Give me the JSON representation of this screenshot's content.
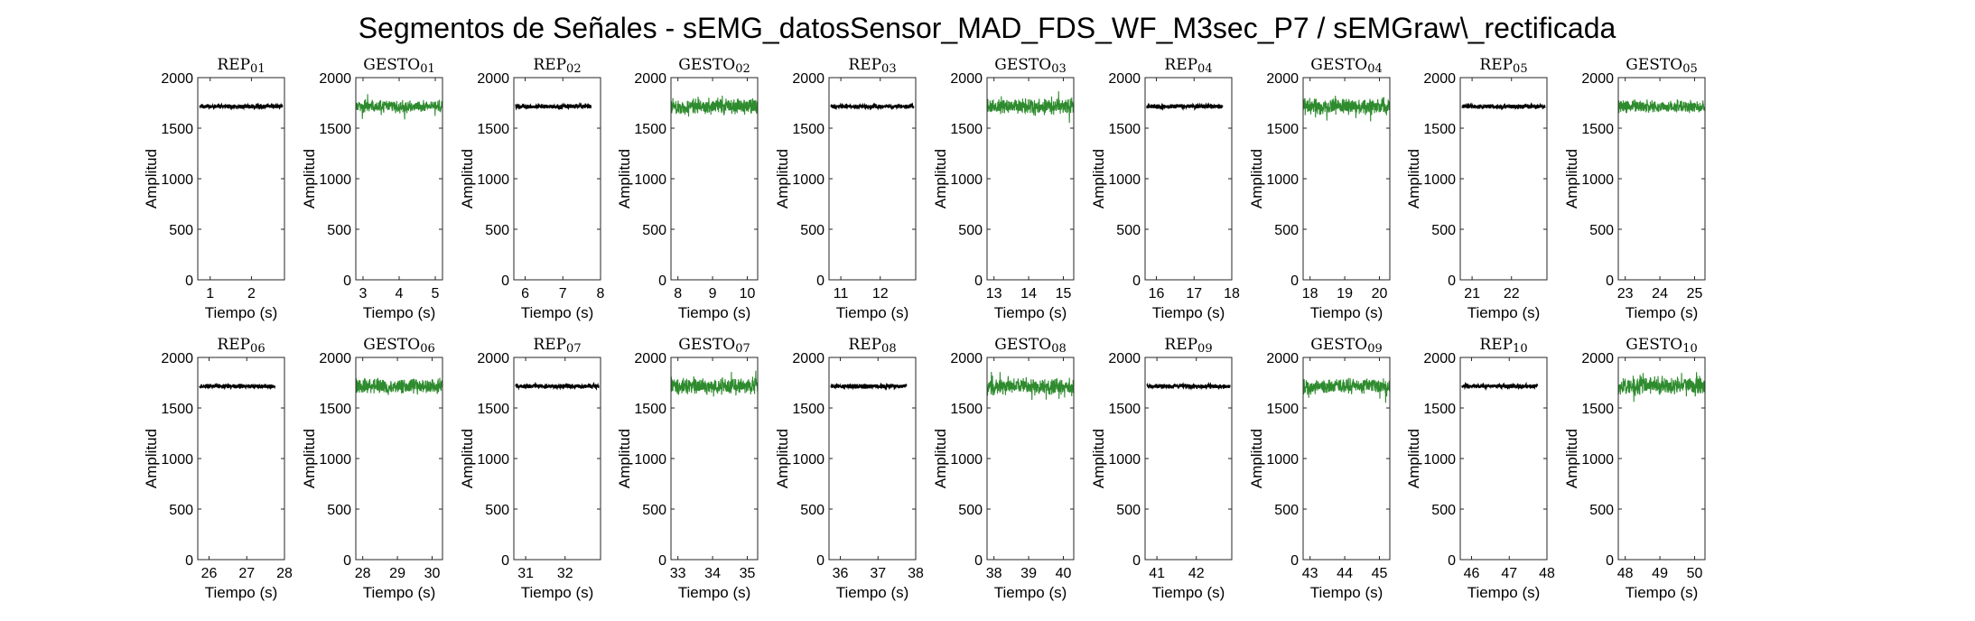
{
  "figure": {
    "title": "Segmentos de Señales - sEMG_datosSensor_MAD_FDS_WF_M3sec_P7 / sEMGraw\\_rectificada"
  },
  "colors": {
    "rep": "#000000",
    "gesto": "#2e8b2e"
  },
  "chart_data": [
    {
      "type": "line",
      "title": "REP_01",
      "xlabel": "Tiempo (s)",
      "ylabel": "Amplitud",
      "xlim": [
        0.7,
        2.8
      ],
      "ylim": [
        0,
        2000
      ],
      "xticks": [
        1,
        2
      ],
      "yticks": [
        0,
        500,
        1000,
        1500,
        2000
      ],
      "series": [
        {
          "kind": "rep",
          "x_range": [
            0.75,
            2.75
          ],
          "baseline": 1715,
          "noise": 25
        }
      ]
    },
    {
      "type": "line",
      "title": "GESTO_01",
      "xlabel": "Tiempo (s)",
      "ylabel": "Amplitud",
      "xlim": [
        2.8,
        5.2
      ],
      "ylim": [
        0,
        2000
      ],
      "xticks": [
        3,
        4,
        5
      ],
      "yticks": [
        0,
        500,
        1000,
        1500,
        2000
      ],
      "series": [
        {
          "kind": "gesto",
          "x_range": [
            2.8,
            5.2
          ],
          "baseline": 1715,
          "noise": 70
        }
      ]
    },
    {
      "type": "line",
      "title": "REP_02",
      "xlabel": "Tiempo (s)",
      "ylabel": "Amplitud",
      "xlim": [
        5.7,
        8.0
      ],
      "ylim": [
        0,
        2000
      ],
      "xticks": [
        6,
        7,
        8
      ],
      "yticks": [
        0,
        500,
        1000,
        1500,
        2000
      ],
      "series": [
        {
          "kind": "rep",
          "x_range": [
            5.75,
            7.75
          ],
          "baseline": 1715,
          "noise": 25
        }
      ]
    },
    {
      "type": "line",
      "title": "GESTO_02",
      "xlabel": "Tiempo (s)",
      "ylabel": "Amplitud",
      "xlim": [
        7.8,
        10.3
      ],
      "ylim": [
        0,
        2000
      ],
      "xticks": [
        8,
        9,
        10
      ],
      "yticks": [
        0,
        500,
        1000,
        1500,
        2000
      ],
      "series": [
        {
          "kind": "gesto",
          "x_range": [
            7.8,
            10.3
          ],
          "baseline": 1715,
          "noise": 90
        }
      ]
    },
    {
      "type": "line",
      "title": "REP_03",
      "xlabel": "Tiempo (s)",
      "ylabel": "Amplitud",
      "xlim": [
        10.7,
        12.9
      ],
      "ylim": [
        0,
        2000
      ],
      "xticks": [
        11,
        12
      ],
      "yticks": [
        0,
        500,
        1000,
        1500,
        2000
      ],
      "series": [
        {
          "kind": "rep",
          "x_range": [
            10.75,
            12.85
          ],
          "baseline": 1715,
          "noise": 25
        }
      ]
    },
    {
      "type": "line",
      "title": "GESTO_03",
      "xlabel": "Tiempo (s)",
      "ylabel": "Amplitud",
      "xlim": [
        12.8,
        15.3
      ],
      "ylim": [
        0,
        2000
      ],
      "xticks": [
        13,
        14,
        15
      ],
      "yticks": [
        0,
        500,
        1000,
        1500,
        2000
      ],
      "series": [
        {
          "kind": "gesto",
          "x_range": [
            12.8,
            15.3
          ],
          "baseline": 1715,
          "noise": 90
        }
      ]
    },
    {
      "type": "line",
      "title": "REP_04",
      "xlabel": "Tiempo (s)",
      "ylabel": "Amplitud",
      "xlim": [
        15.7,
        18.0
      ],
      "ylim": [
        0,
        2000
      ],
      "xticks": [
        16,
        17,
        18
      ],
      "yticks": [
        0,
        500,
        1000,
        1500,
        2000
      ],
      "series": [
        {
          "kind": "rep",
          "x_range": [
            15.75,
            17.75
          ],
          "baseline": 1715,
          "noise": 25
        }
      ]
    },
    {
      "type": "line",
      "title": "GESTO_04",
      "xlabel": "Tiempo (s)",
      "ylabel": "Amplitud",
      "xlim": [
        17.8,
        20.3
      ],
      "ylim": [
        0,
        2000
      ],
      "xticks": [
        18,
        19,
        20
      ],
      "yticks": [
        0,
        500,
        1000,
        1500,
        2000
      ],
      "series": [
        {
          "kind": "gesto",
          "x_range": [
            17.8,
            20.3
          ],
          "baseline": 1715,
          "noise": 95
        }
      ]
    },
    {
      "type": "line",
      "title": "REP_05",
      "xlabel": "Tiempo (s)",
      "ylabel": "Amplitud",
      "xlim": [
        20.7,
        22.9
      ],
      "ylim": [
        0,
        2000
      ],
      "xticks": [
        21,
        22
      ],
      "yticks": [
        0,
        500,
        1000,
        1500,
        2000
      ],
      "series": [
        {
          "kind": "rep",
          "x_range": [
            20.75,
            22.85
          ],
          "baseline": 1715,
          "noise": 25
        }
      ]
    },
    {
      "type": "line",
      "title": "GESTO_05",
      "xlabel": "Tiempo (s)",
      "ylabel": "Amplitud",
      "xlim": [
        22.8,
        25.3
      ],
      "ylim": [
        0,
        2000
      ],
      "xticks": [
        23,
        24,
        25
      ],
      "yticks": [
        0,
        500,
        1000,
        1500,
        2000
      ],
      "series": [
        {
          "kind": "gesto",
          "x_range": [
            22.8,
            25.3
          ],
          "baseline": 1715,
          "noise": 75
        }
      ]
    },
    {
      "type": "line",
      "title": "REP_06",
      "xlabel": "Tiempo (s)",
      "ylabel": "Amplitud",
      "xlim": [
        25.7,
        28.0
      ],
      "ylim": [
        0,
        2000
      ],
      "xticks": [
        26,
        27,
        28
      ],
      "yticks": [
        0,
        500,
        1000,
        1500,
        2000
      ],
      "series": [
        {
          "kind": "rep",
          "x_range": [
            25.75,
            27.75
          ],
          "baseline": 1715,
          "noise": 25
        }
      ]
    },
    {
      "type": "line",
      "title": "GESTO_06",
      "xlabel": "Tiempo (s)",
      "ylabel": "Amplitud",
      "xlim": [
        27.8,
        30.3
      ],
      "ylim": [
        0,
        2000
      ],
      "xticks": [
        28,
        29,
        30
      ],
      "yticks": [
        0,
        500,
        1000,
        1500,
        2000
      ],
      "series": [
        {
          "kind": "gesto",
          "x_range": [
            27.8,
            30.3
          ],
          "baseline": 1715,
          "noise": 90
        }
      ]
    },
    {
      "type": "line",
      "title": "REP_07",
      "xlabel": "Tiempo (s)",
      "ylabel": "Amplitud",
      "xlim": [
        30.7,
        32.9
      ],
      "ylim": [
        0,
        2000
      ],
      "xticks": [
        31,
        32
      ],
      "yticks": [
        0,
        500,
        1000,
        1500,
        2000
      ],
      "series": [
        {
          "kind": "rep",
          "x_range": [
            30.75,
            32.85
          ],
          "baseline": 1715,
          "noise": 25
        }
      ]
    },
    {
      "type": "line",
      "title": "GESTO_07",
      "xlabel": "Tiempo (s)",
      "ylabel": "Amplitud",
      "xlim": [
        32.8,
        35.3
      ],
      "ylim": [
        0,
        2000
      ],
      "xticks": [
        33,
        34,
        35
      ],
      "yticks": [
        0,
        500,
        1000,
        1500,
        2000
      ],
      "series": [
        {
          "kind": "gesto",
          "x_range": [
            32.8,
            35.3
          ],
          "baseline": 1715,
          "noise": 100
        }
      ]
    },
    {
      "type": "line",
      "title": "REP_08",
      "xlabel": "Tiempo (s)",
      "ylabel": "Amplitud",
      "xlim": [
        35.7,
        38.0
      ],
      "ylim": [
        0,
        2000
      ],
      "xticks": [
        36,
        37,
        38
      ],
      "yticks": [
        0,
        500,
        1000,
        1500,
        2000
      ],
      "series": [
        {
          "kind": "rep",
          "x_range": [
            35.75,
            37.75
          ],
          "baseline": 1715,
          "noise": 25
        }
      ]
    },
    {
      "type": "line",
      "title": "GESTO_08",
      "xlabel": "Tiempo (s)",
      "ylabel": "Amplitud",
      "xlim": [
        37.8,
        40.3
      ],
      "ylim": [
        0,
        2000
      ],
      "xticks": [
        38,
        39,
        40
      ],
      "yticks": [
        0,
        500,
        1000,
        1500,
        2000
      ],
      "series": [
        {
          "kind": "gesto",
          "x_range": [
            37.8,
            40.3
          ],
          "baseline": 1715,
          "noise": 100
        }
      ]
    },
    {
      "type": "line",
      "title": "REP_09",
      "xlabel": "Tiempo (s)",
      "ylabel": "Amplitud",
      "xlim": [
        40.7,
        42.9
      ],
      "ylim": [
        0,
        2000
      ],
      "xticks": [
        41,
        42
      ],
      "yticks": [
        0,
        500,
        1000,
        1500,
        2000
      ],
      "series": [
        {
          "kind": "rep",
          "x_range": [
            40.75,
            42.85
          ],
          "baseline": 1715,
          "noise": 25
        }
      ]
    },
    {
      "type": "line",
      "title": "GESTO_09",
      "xlabel": "Tiempo (s)",
      "ylabel": "Amplitud",
      "xlim": [
        42.8,
        45.3
      ],
      "ylim": [
        0,
        2000
      ],
      "xticks": [
        43,
        44,
        45
      ],
      "yticks": [
        0,
        500,
        1000,
        1500,
        2000
      ],
      "series": [
        {
          "kind": "gesto",
          "x_range": [
            42.8,
            45.3
          ],
          "baseline": 1715,
          "noise": 90
        }
      ]
    },
    {
      "type": "line",
      "title": "REP_10",
      "xlabel": "Tiempo (s)",
      "ylabel": "Amplitud",
      "xlim": [
        45.7,
        48.0
      ],
      "ylim": [
        0,
        2000
      ],
      "xticks": [
        46,
        47,
        48
      ],
      "yticks": [
        0,
        500,
        1000,
        1500,
        2000
      ],
      "series": [
        {
          "kind": "rep",
          "x_range": [
            45.75,
            47.75
          ],
          "baseline": 1715,
          "noise": 25
        }
      ]
    },
    {
      "type": "line",
      "title": "GESTO_10",
      "xlabel": "Tiempo (s)",
      "ylabel": "Amplitud",
      "xlim": [
        47.8,
        50.3
      ],
      "ylim": [
        0,
        2000
      ],
      "xticks": [
        48,
        49,
        50
      ],
      "yticks": [
        0,
        500,
        1000,
        1500,
        2000
      ],
      "series": [
        {
          "kind": "gesto",
          "x_range": [
            47.8,
            50.3
          ],
          "baseline": 1715,
          "noise": 110
        }
      ]
    }
  ]
}
